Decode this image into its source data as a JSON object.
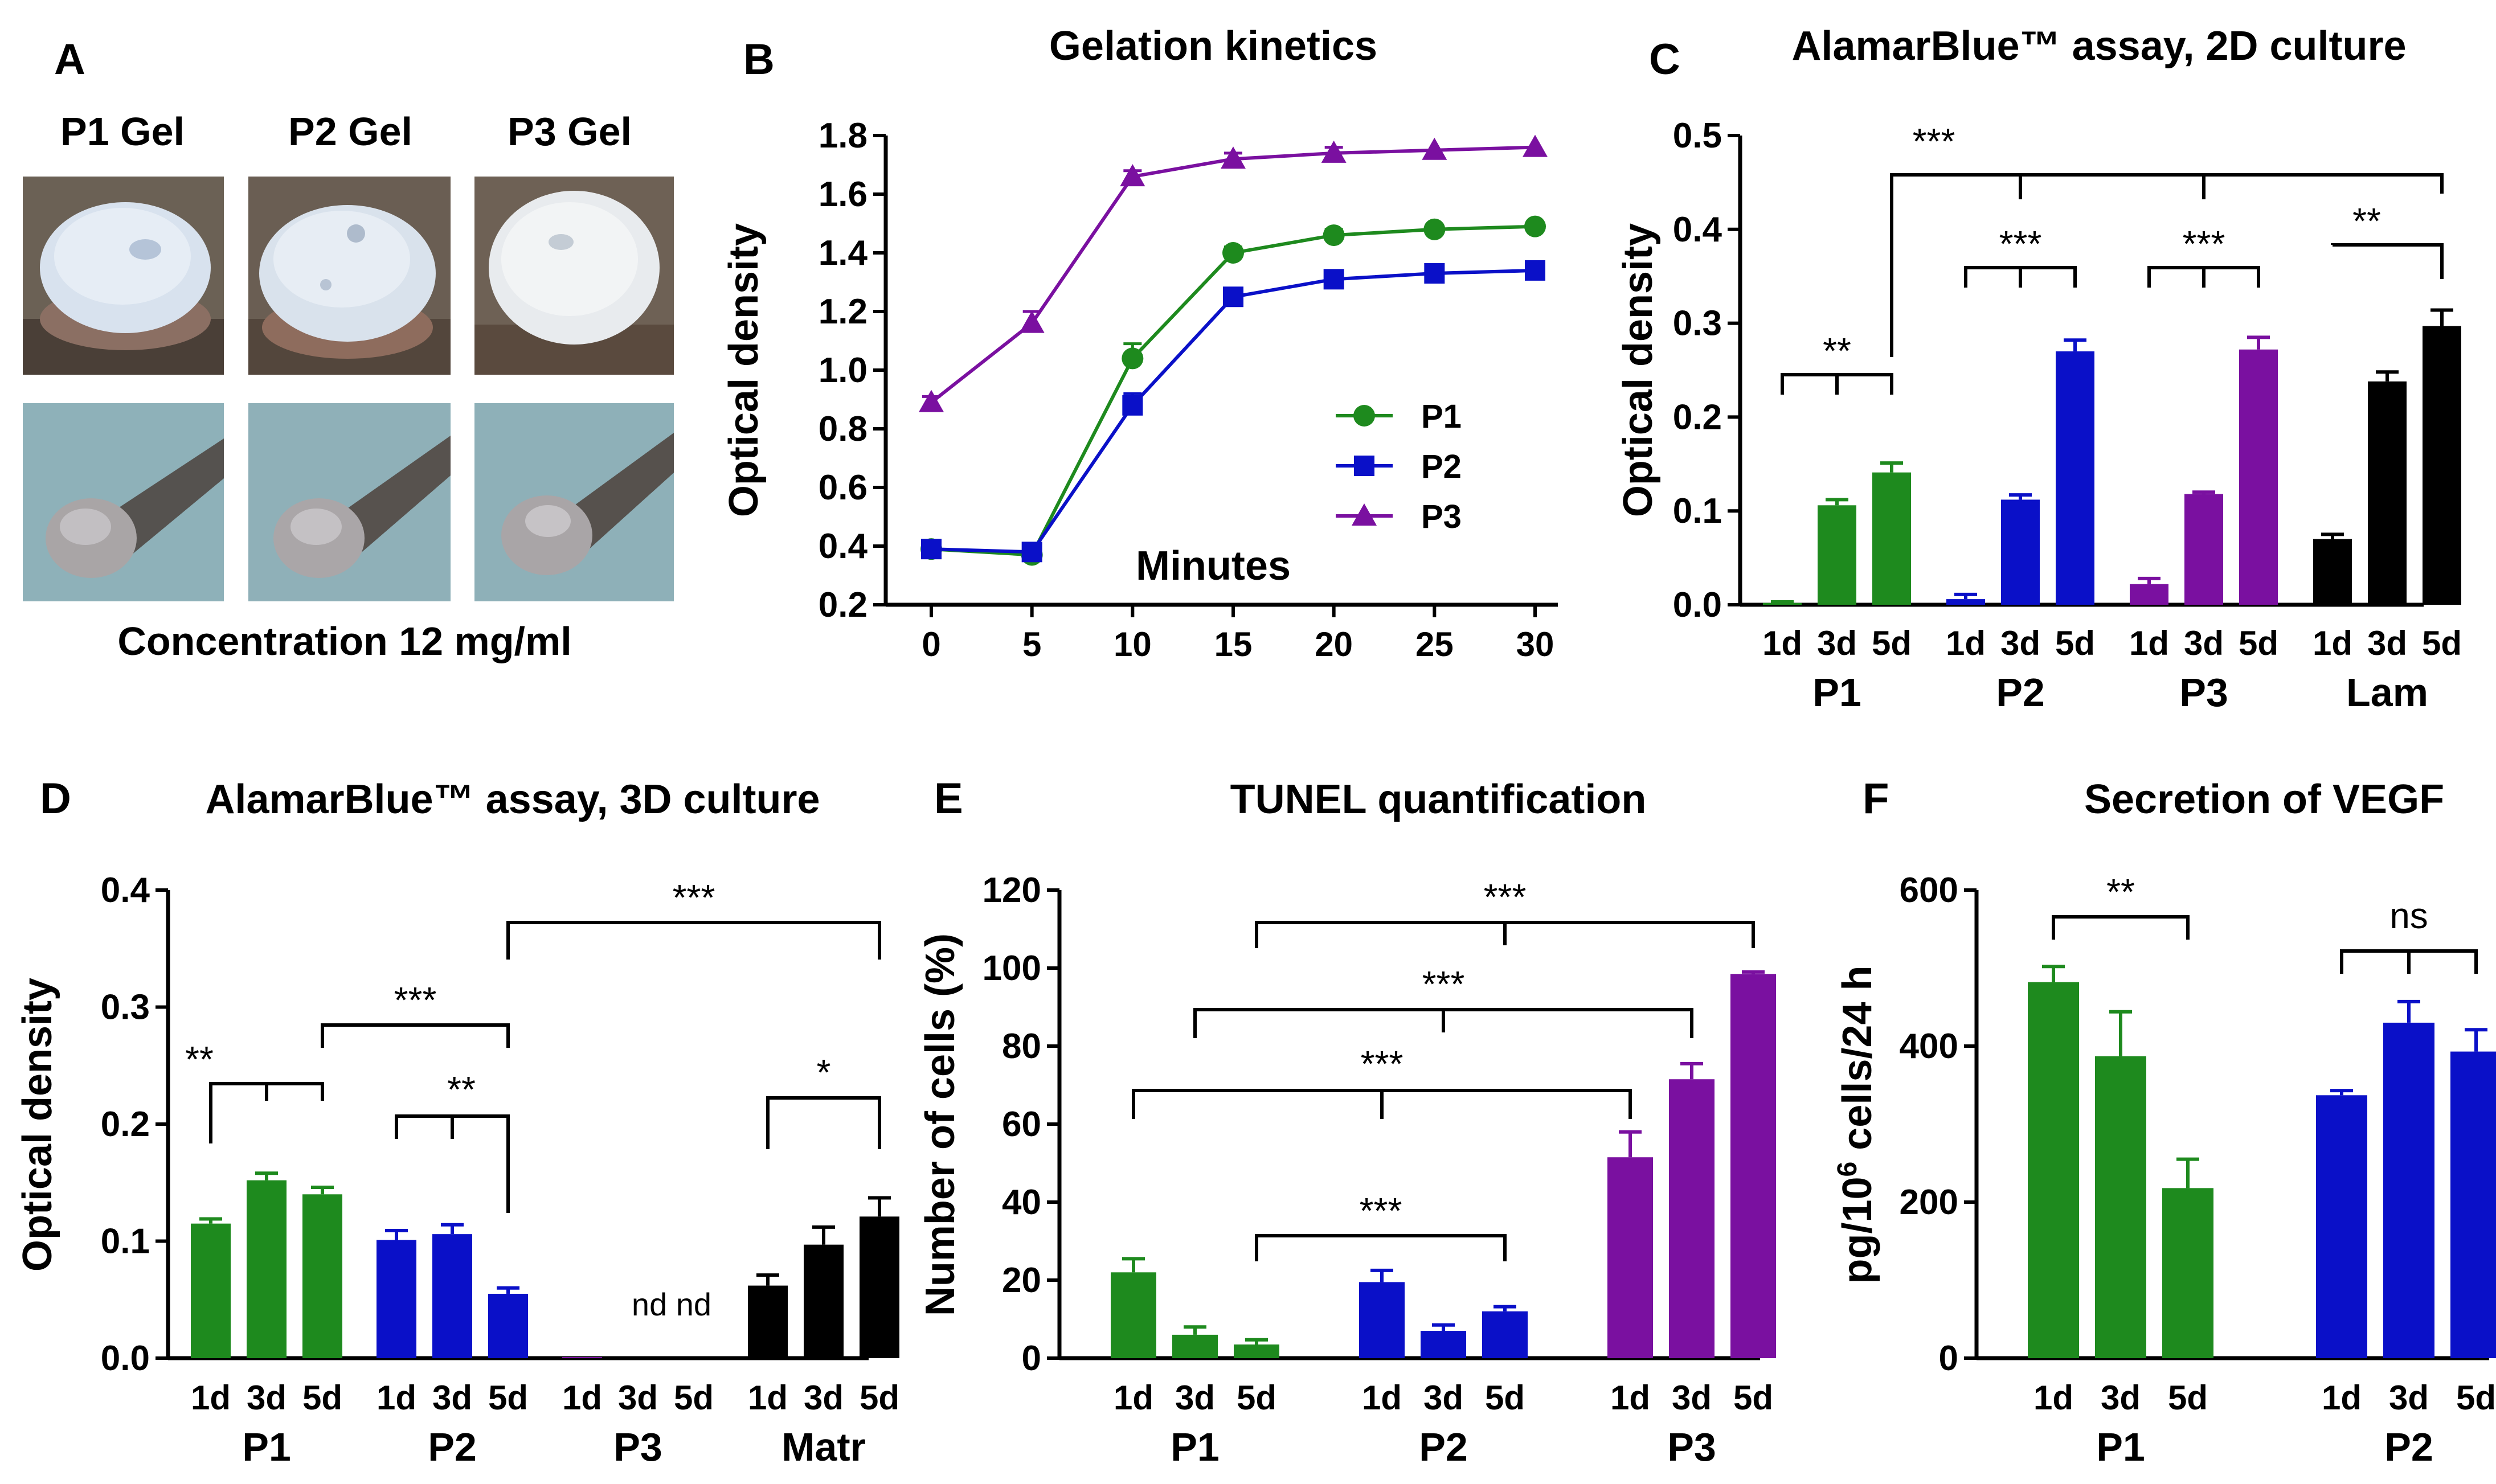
{
  "colors": {
    "P1": "#1e8a1e",
    "P2": "#0a10c8",
    "P3": "#7a10a0",
    "Lam": "#000000",
    "Matr": "#000000"
  },
  "panelA": {
    "label": "A",
    "gels": [
      "P1 Gel",
      "P2 Gel",
      "P3 Gel"
    ],
    "caption": "Concentration 12 mg/ml"
  },
  "chart_data": [
    {
      "panel": "B",
      "type": "line",
      "title": "Gelation kinetics",
      "xlabel": "Minutes",
      "ylabel": "Optical density",
      "x": [
        0,
        5,
        10,
        15,
        20,
        25,
        30
      ],
      "xticks": [
        "0",
        "5",
        "10",
        "15",
        "20",
        "25",
        "30"
      ],
      "yticks": [
        "0.2",
        "0.4",
        "0.6",
        "0.8",
        "1.0",
        "1.2",
        "1.4",
        "1.6",
        "1.8"
      ],
      "ylim": [
        0.2,
        1.8
      ],
      "legend": "right",
      "series": [
        {
          "name": "P1",
          "color": "#1e8a1e",
          "marker": "circle",
          "values": [
            0.39,
            0.37,
            1.04,
            1.4,
            1.46,
            1.48,
            1.49
          ],
          "errors": [
            0.01,
            0.01,
            0.05,
            0.02,
            0.02,
            0.01,
            0.01
          ]
        },
        {
          "name": "P2",
          "color": "#0a10c8",
          "marker": "square",
          "values": [
            0.39,
            0.38,
            0.88,
            1.25,
            1.31,
            1.33,
            1.34
          ],
          "errors": [
            0.01,
            0.01,
            0.04,
            0.02,
            0.02,
            0.01,
            0.01
          ]
        },
        {
          "name": "P3",
          "color": "#7a10a0",
          "marker": "triangle",
          "values": [
            0.89,
            1.16,
            1.66,
            1.72,
            1.74,
            1.75,
            1.76
          ],
          "errors": [
            0.02,
            0.04,
            0.02,
            0.02,
            0.02,
            0.01,
            0.01
          ]
        }
      ]
    },
    {
      "panel": "C",
      "type": "bar",
      "title": "AlamarBlue™ assay,  2D culture",
      "ylabel": "Optical density",
      "yticks": [
        "0.0",
        "0.1",
        "0.2",
        "0.3",
        "0.4",
        "0.5"
      ],
      "ylim": [
        0,
        0.5
      ],
      "groups": [
        {
          "name": "P1",
          "color": "#1e8a1e",
          "days": [
            "1d",
            "3d",
            "5d"
          ],
          "values": [
            0.002,
            0.106,
            0.141
          ],
          "errors": [
            0.001,
            0.006,
            0.01
          ]
        },
        {
          "name": "P2",
          "color": "#0a10c8",
          "days": [
            "1d",
            "3d",
            "5d"
          ],
          "values": [
            0.006,
            0.112,
            0.27
          ],
          "errors": [
            0.005,
            0.005,
            0.012
          ]
        },
        {
          "name": "P3",
          "color": "#7a10a0",
          "days": [
            "1d",
            "3d",
            "5d"
          ],
          "values": [
            0.022,
            0.118,
            0.272
          ],
          "errors": [
            0.006,
            0.002,
            0.013
          ]
        },
        {
          "name": "Lam",
          "color": "#000000",
          "days": [
            "1d",
            "3d",
            "5d"
          ],
          "values": [
            0.07,
            0.238,
            0.297
          ],
          "errors": [
            0.005,
            0.01,
            0.017
          ]
        }
      ],
      "significance": [
        "**",
        "***",
        "***",
        "**",
        "***"
      ]
    },
    {
      "panel": "D",
      "type": "bar",
      "title": "AlamarBlue™ assay, 3D culture",
      "ylabel": "Optical density",
      "yticks": [
        "0.0",
        "0.1",
        "0.2",
        "0.3",
        "0.4"
      ],
      "ylim": [
        0,
        0.4
      ],
      "groups": [
        {
          "name": "P1",
          "color": "#1e8a1e",
          "days": [
            "1d",
            "3d",
            "5d"
          ],
          "values": [
            0.115,
            0.152,
            0.14
          ],
          "errors": [
            0.004,
            0.006,
            0.006
          ]
        },
        {
          "name": "P2",
          "color": "#0a10c8",
          "days": [
            "1d",
            "3d",
            "5d"
          ],
          "values": [
            0.101,
            0.106,
            0.055
          ],
          "errors": [
            0.008,
            0.008,
            0.005
          ]
        },
        {
          "name": "P3",
          "color": "#7a10a0",
          "days": [
            "1d",
            "3d",
            "5d"
          ],
          "values": [
            0.001,
            0,
            0
          ],
          "errors": [
            0,
            0,
            0
          ]
        },
        {
          "name": "Matr",
          "color": "#000000",
          "days": [
            "1d",
            "3d",
            "5d"
          ],
          "values": [
            0.062,
            0.097,
            0.121
          ],
          "errors": [
            0.009,
            0.015,
            0.016
          ]
        }
      ],
      "nd_label": "nd nd",
      "significance": [
        "**",
        "***",
        "**",
        "***",
        "*"
      ]
    },
    {
      "panel": "E",
      "type": "bar",
      "title": "TUNEL quantification",
      "ylabel": "Number of cells (%)",
      "yticks": [
        "0",
        "20",
        "40",
        "60",
        "80",
        "100",
        "120"
      ],
      "ylim": [
        0,
        120
      ],
      "groups": [
        {
          "name": "P1",
          "color": "#1e8a1e",
          "days": [
            "1d",
            "3d",
            "5d"
          ],
          "values": [
            22,
            6,
            3.5
          ],
          "errors": [
            3.5,
            2,
            1.2
          ]
        },
        {
          "name": "P2",
          "color": "#0a10c8",
          "days": [
            "1d",
            "3d",
            "5d"
          ],
          "values": [
            19.5,
            7,
            12
          ],
          "errors": [
            3,
            1.5,
            1.2
          ]
        },
        {
          "name": "P3",
          "color": "#7a10a0",
          "days": [
            "1d",
            "3d",
            "5d"
          ],
          "values": [
            51.5,
            71.5,
            98.5
          ],
          "errors": [
            6.5,
            4,
            0.5
          ]
        }
      ],
      "significance": [
        "***",
        "***",
        "***",
        "***"
      ]
    },
    {
      "panel": "F",
      "type": "bar",
      "title": "Secretion of VEGF",
      "ylabel": "pg/10⁶ cells/24 h",
      "ylabel_parts": [
        "pg/10",
        "6",
        " cells/24 h"
      ],
      "yticks": [
        "0",
        "200",
        "400",
        "600"
      ],
      "ylim": [
        0,
        600
      ],
      "groups": [
        {
          "name": "P1",
          "color": "#1e8a1e",
          "days": [
            "1d",
            "3d",
            "5d"
          ],
          "values": [
            482,
            387,
            218
          ],
          "errors": [
            20,
            57,
            37
          ]
        },
        {
          "name": "P2",
          "color": "#0a10c8",
          "days": [
            "1d",
            "3d",
            "5d"
          ],
          "values": [
            337,
            430,
            393
          ],
          "errors": [
            6,
            27,
            28
          ]
        }
      ],
      "significance": [
        "**",
        "ns"
      ]
    }
  ]
}
